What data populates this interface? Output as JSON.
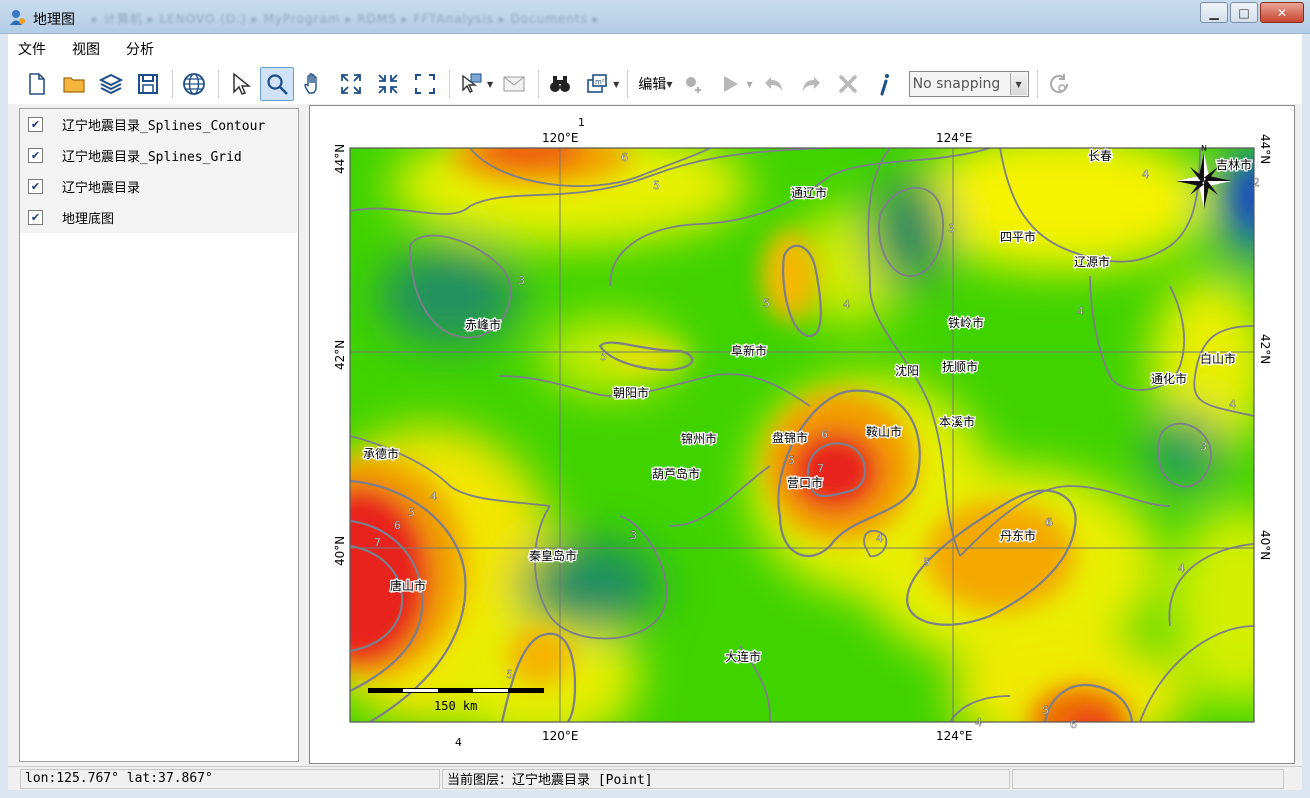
{
  "window": {
    "title": "地理图",
    "blurred_path": "▸ 计算机 ▸ LENOVO (D:) ▸ MyProgram ▸ RDMS ▸ FFTAnalysis ▸ Documents ▸",
    "min_label": "▁",
    "max_label": "□",
    "close_label": "✕"
  },
  "menu": [
    "文件",
    "视图",
    "分析"
  ],
  "toolbar": {
    "edit_label": "编辑",
    "snapping_value": "No snapping"
  },
  "layers": [
    {
      "label": "辽宁地震目录_Splines_Contour",
      "checked": true
    },
    {
      "label": "辽宁地震目录_Splines_Grid",
      "checked": true
    },
    {
      "label": "辽宁地震目录",
      "checked": true
    },
    {
      "label": "地理底图",
      "checked": true
    }
  ],
  "map": {
    "lon_labels": [
      "120°E",
      "124°E"
    ],
    "lat_labels": [
      "44°N",
      "42°N",
      "40°N"
    ],
    "north_marker": "1",
    "north_label": "N",
    "scale_label": "150 km",
    "cities": [
      {
        "name": "长春"
      },
      {
        "name": "吉林市"
      },
      {
        "name": "通辽市"
      },
      {
        "name": "四平市"
      },
      {
        "name": "辽源市"
      },
      {
        "name": "赤峰市"
      },
      {
        "name": "铁岭市"
      },
      {
        "name": "阜新市"
      },
      {
        "name": "沈阳"
      },
      {
        "name": "抚顺市"
      },
      {
        "name": "白山市"
      },
      {
        "name": "通化市"
      },
      {
        "name": "朝阳市"
      },
      {
        "name": "本溪市"
      },
      {
        "name": "锦州市"
      },
      {
        "name": "盘锦市"
      },
      {
        "name": "鞍山市"
      },
      {
        "name": "承德市"
      },
      {
        "name": "葫芦岛市"
      },
      {
        "name": "营口市"
      },
      {
        "name": "丹东市"
      },
      {
        "name": "秦皇岛市"
      },
      {
        "name": "唐山市"
      },
      {
        "name": "大连市"
      }
    ],
    "contour_labels": [
      "6",
      "5",
      "3",
      "5",
      "4",
      "3",
      "2",
      "4",
      "3",
      "4",
      "4",
      "5",
      "3",
      "6",
      "5",
      "7",
      "4",
      "5",
      "6",
      "7",
      "6",
      "3",
      "4",
      "5",
      "6",
      "5",
      "4",
      "4",
      "5",
      "6",
      "4"
    ]
  },
  "status": {
    "coords": "lon:125.767°  lat:37.867°",
    "current_layer": "当前图层：辽宁地震目录 [Point]"
  },
  "colors": {
    "accent": "#6a9fd6",
    "grid_red": "#e8231a",
    "grid_green": "#3bd100",
    "grid_teal": "#1f8a5a",
    "grid_blue": "#1a4fb8",
    "contour": "#7d7d8c"
  }
}
